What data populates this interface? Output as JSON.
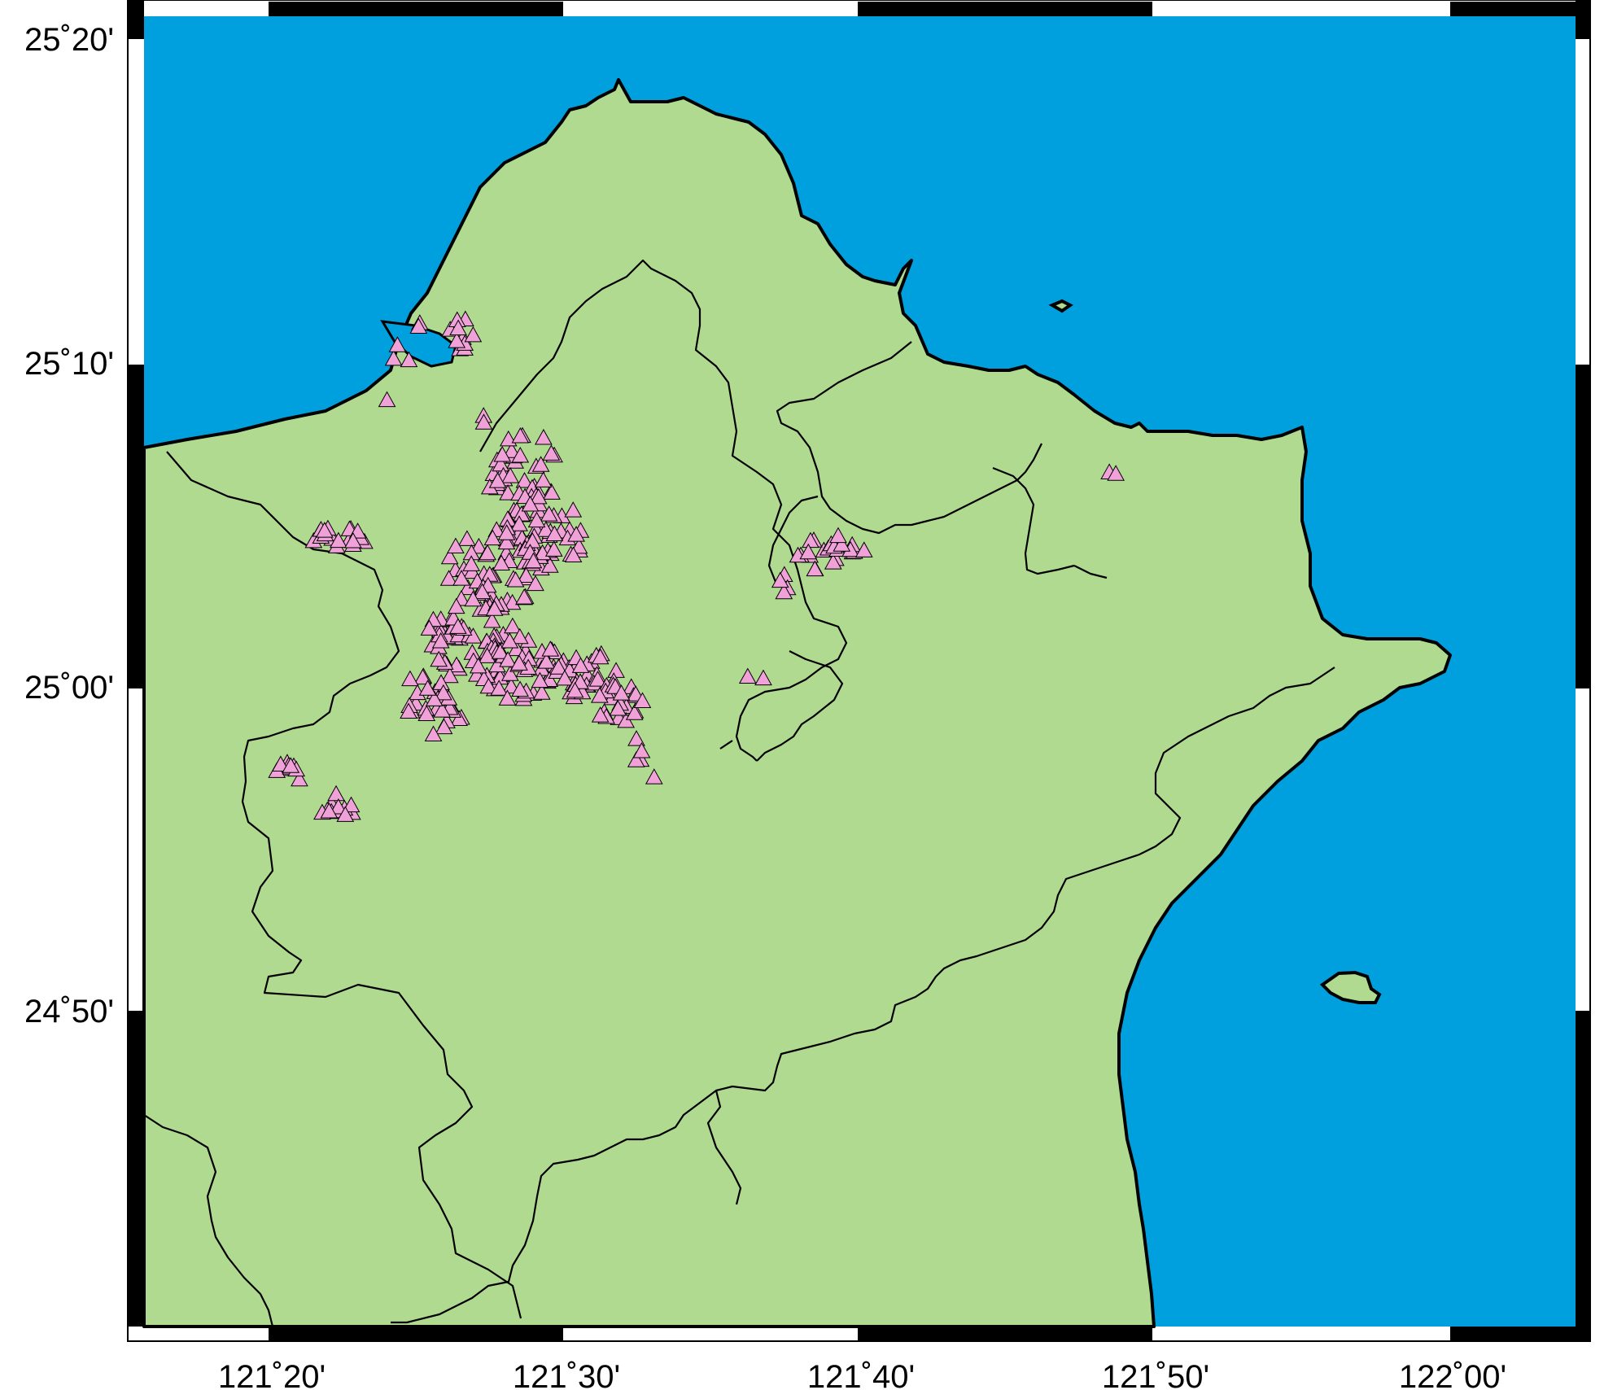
{
  "map": {
    "colors": {
      "sea": "#00A0DE",
      "land": "#AFDA90",
      "border": "#000000",
      "markers": "#EFA1D8",
      "frame_dark": "#000000",
      "frame_light": "#FFFFFF"
    },
    "marker_symbol": "triangle",
    "extent": {
      "lon_min": 121.2583,
      "lon_max": 122.0833,
      "lat_min": 24.7,
      "lat_max": 25.3667
    },
    "x_tick_labels": [
      "121˚20'",
      "121˚30'",
      "121˚40'",
      "121˚50'",
      "122˚00'"
    ],
    "y_tick_labels": [
      "25˚20'",
      "25˚10'",
      "25˚00'",
      "24˚50'"
    ],
    "station_count_shown": "dense clusters of pink triangle markers"
  }
}
